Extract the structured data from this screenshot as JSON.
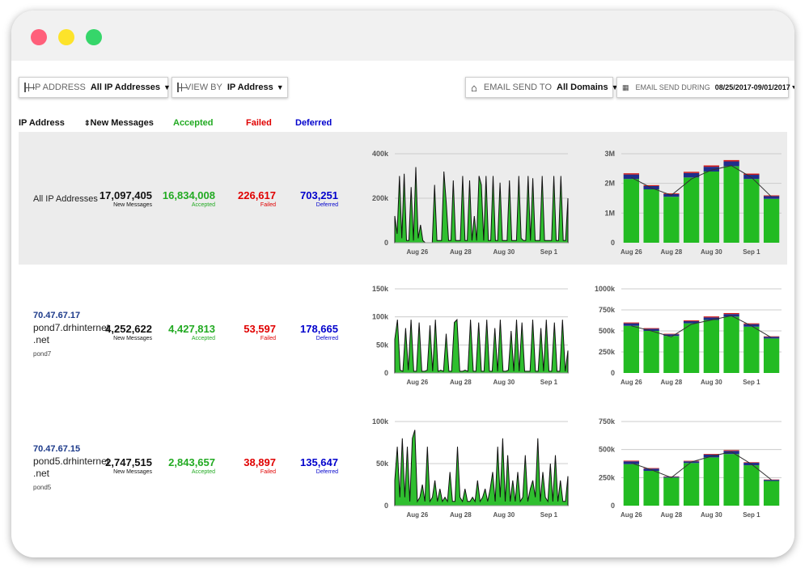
{
  "window": {
    "controls": [
      "close",
      "minimize",
      "maximize"
    ]
  },
  "filters": {
    "ip_address": {
      "label": "IP ADDRESS",
      "value": "All IP Addresses"
    },
    "view_by": {
      "label": "VIEW BY",
      "value": "IP Address"
    },
    "email_send_to": {
      "label": "EMAIL SEND TO",
      "value": "All Domains"
    },
    "email_send_during": {
      "label": "EMAIL SEND DURING",
      "value": "08/25/2017-09/01/2017"
    }
  },
  "table": {
    "headers": {
      "ip": "IP Address",
      "new_messages": "New Messages",
      "accepted": "Accepted",
      "failed": "Failed",
      "deferred": "Deferred"
    },
    "sort_icon": "sort-icon",
    "rows": [
      {
        "name": "All IP Addresses",
        "new_messages": "17,097,405",
        "accepted": "16,834,008",
        "failed": "226,617",
        "deferred": "703,251",
        "new_label": "New Messages",
        "accepted_label": "Accepted",
        "failed_label": "Failed",
        "deferred_label": "Deferred"
      },
      {
        "ip": "70.47.67.17",
        "host_line1": "pond7.drhinternet",
        "host_line2": ".net",
        "short": "pond7",
        "new_messages": "4,252,622",
        "accepted": "4,427,813",
        "failed": "53,597",
        "deferred": "178,665",
        "new_label": "New Messages",
        "accepted_label": "Accepted",
        "failed_label": "Failed",
        "deferred_label": "Deferred"
      },
      {
        "ip": "70.47.67.15",
        "host_line1": "pond5.drhinternet",
        "host_line2": ".net",
        "short": "pond5",
        "new_messages": "2,747,515",
        "accepted": "2,843,657",
        "failed": "38,897",
        "deferred": "135,647",
        "new_label": "New Messages",
        "accepted_label": "Accepted",
        "failed_label": "Failed",
        "deferred_label": "Deferred"
      }
    ]
  },
  "colors": {
    "accepted": "#22aa22",
    "failed": "#e00000",
    "deferred": "#0000cc",
    "bar_green": "#22bb22",
    "bar_blue": "#1f2e8c",
    "bar_red": "#d01a1a"
  },
  "chart_data": [
    {
      "type": "area",
      "row": 0,
      "x_ticks": [
        "Aug 26",
        "Aug 28",
        "Aug 30",
        "Sep 1"
      ],
      "y_ticks": [
        "400k",
        "200k",
        "0"
      ],
      "ylim": [
        0,
        400000
      ],
      "values": [
        120000,
        40000,
        300000,
        20000,
        310000,
        10000,
        10000,
        250000,
        10000,
        340000,
        20000,
        80000,
        10000,
        0,
        0,
        0,
        0,
        260000,
        10000,
        10000,
        10000,
        320000,
        180000,
        10000,
        10000,
        280000,
        10000,
        10000,
        10000,
        300000,
        10000,
        10000,
        280000,
        10000,
        120000,
        10000,
        300000,
        260000,
        10000,
        300000,
        10000,
        10000,
        300000,
        10000,
        10000,
        270000,
        10000,
        10000,
        10000,
        280000,
        10000,
        10000,
        10000,
        300000,
        20000,
        10000,
        10000,
        300000,
        10000,
        290000,
        10000,
        10000,
        10000,
        300000,
        10000,
        10000,
        10000,
        10000,
        300000,
        10000,
        10000,
        300000,
        10000,
        10000,
        200000
      ]
    },
    {
      "type": "bar",
      "row": 0,
      "categories": [
        "Aug 26",
        "",
        "Aug 28",
        "",
        "Aug 30",
        "",
        "Sep 1",
        ""
      ],
      "x_ticks": [
        "Aug 26",
        "Aug 28",
        "Aug 30",
        "Sep 1"
      ],
      "y_ticks": [
        "3M",
        "2M",
        "1M",
        "0"
      ],
      "ylim": [
        0,
        3000000
      ],
      "series": [
        {
          "name": "accepted",
          "values": [
            2150000,
            1800000,
            1550000,
            2200000,
            2400000,
            2580000,
            2150000,
            1480000
          ]
        },
        {
          "name": "deferred",
          "values": [
            150000,
            110000,
            90000,
            150000,
            160000,
            160000,
            140000,
            90000
          ]
        },
        {
          "name": "failed",
          "values": [
            40000,
            30000,
            25000,
            40000,
            45000,
            45000,
            40000,
            25000
          ]
        }
      ],
      "line": [
        2200000,
        1850000,
        1600000,
        2150000,
        2450000,
        2600000,
        2200000,
        1550000
      ]
    },
    {
      "type": "area",
      "row": 1,
      "x_ticks": [
        "Aug 26",
        "Aug 28",
        "Aug 30",
        "Sep 1"
      ],
      "y_ticks": [
        "150k",
        "100k",
        "50k",
        "0"
      ],
      "ylim": [
        0,
        150000
      ],
      "values": [
        60000,
        95000,
        5000,
        3000,
        80000,
        5000,
        95000,
        3000,
        3000,
        90000,
        3000,
        3000,
        5000,
        85000,
        3000,
        95000,
        3000,
        5000,
        3000,
        70000,
        3000,
        3000,
        90000,
        95000,
        3000,
        3000,
        5000,
        3000,
        95000,
        3000,
        3000,
        90000,
        3000,
        3000,
        95000,
        3000,
        3000,
        80000,
        3000,
        95000,
        3000,
        3000,
        5000,
        75000,
        3000,
        95000,
        3000,
        90000,
        3000,
        3000,
        3000,
        95000,
        3000,
        3000,
        80000,
        3000,
        95000,
        3000,
        3000,
        90000,
        3000,
        3000,
        95000,
        3000,
        40000
      ]
    },
    {
      "type": "bar",
      "row": 1,
      "categories": [
        "Aug 26",
        "",
        "Aug 28",
        "",
        "Aug 30",
        "",
        "Sep 1",
        ""
      ],
      "x_ticks": [
        "Aug 26",
        "Aug 28",
        "Aug 30",
        "Sep 1"
      ],
      "y_ticks": [
        "1000k",
        "750k",
        "500k",
        "250k",
        "0"
      ],
      "ylim": [
        0,
        1000000
      ],
      "series": [
        {
          "name": "accepted",
          "values": [
            560000,
            500000,
            440000,
            590000,
            630000,
            670000,
            550000,
            410000
          ]
        },
        {
          "name": "deferred",
          "values": [
            30000,
            25000,
            20000,
            25000,
            30000,
            30000,
            30000,
            20000
          ]
        },
        {
          "name": "failed",
          "values": [
            10000,
            8000,
            6000,
            10000,
            12000,
            12000,
            10000,
            6000
          ]
        }
      ],
      "line": [
        560000,
        500000,
        430000,
        580000,
        630000,
        680000,
        560000,
        420000
      ]
    },
    {
      "type": "area",
      "row": 2,
      "x_ticks": [
        "Aug 26",
        "Aug 28",
        "Aug 30",
        "Sep 1"
      ],
      "y_ticks": [
        "100k",
        "50k",
        "0"
      ],
      "ylim": [
        0,
        100000
      ],
      "values": [
        30000,
        70000,
        10000,
        80000,
        10000,
        70000,
        5000,
        80000,
        90000,
        5000,
        10000,
        25000,
        5000,
        70000,
        5000,
        10000,
        30000,
        5000,
        20000,
        5000,
        10000,
        5000,
        40000,
        5000,
        5000,
        70000,
        10000,
        5000,
        20000,
        5000,
        5000,
        10000,
        5000,
        30000,
        5000,
        10000,
        20000,
        5000,
        20000,
        40000,
        5000,
        70000,
        10000,
        80000,
        5000,
        60000,
        5000,
        30000,
        5000,
        40000,
        5000,
        10000,
        60000,
        5000,
        20000,
        30000,
        10000,
        80000,
        5000,
        40000,
        10000,
        5000,
        50000,
        5000,
        60000,
        5000,
        30000,
        5000,
        5000,
        35000
      ]
    },
    {
      "type": "bar",
      "row": 2,
      "categories": [
        "Aug 26",
        "",
        "Aug 28",
        "",
        "Aug 30",
        "",
        "Sep 1",
        ""
      ],
      "x_ticks": [
        "Aug 26",
        "Aug 28",
        "Aug 30",
        "Sep 1"
      ],
      "y_ticks": [
        "750k",
        "500k",
        "250k",
        "0"
      ],
      "ylim": [
        0,
        750000
      ],
      "series": [
        {
          "name": "accepted",
          "values": [
            370000,
            310000,
            250000,
            380000,
            430000,
            460000,
            360000,
            220000
          ]
        },
        {
          "name": "deferred",
          "values": [
            25000,
            20000,
            8000,
            15000,
            25000,
            28000,
            22000,
            10000
          ]
        },
        {
          "name": "failed",
          "values": [
            6000,
            5000,
            3000,
            5000,
            6000,
            7000,
            5000,
            3000
          ]
        }
      ],
      "line": [
        380000,
        320000,
        250000,
        390000,
        440000,
        480000,
        370000,
        230000
      ]
    }
  ]
}
